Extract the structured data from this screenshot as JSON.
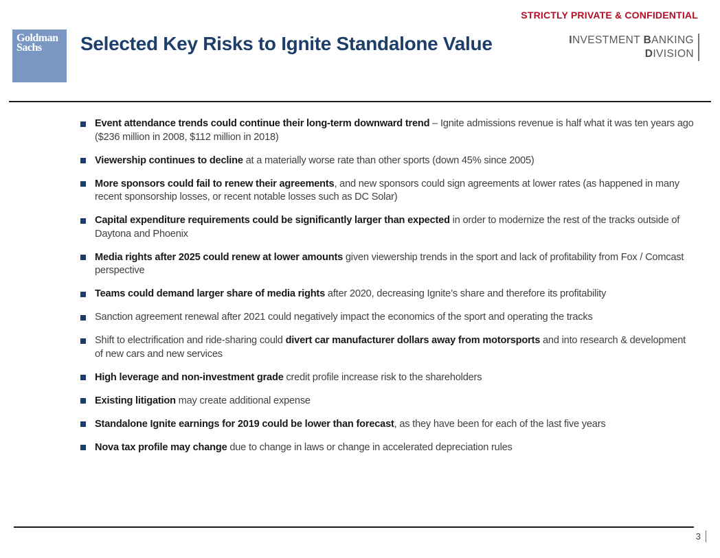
{
  "header": {
    "confidential": "STRICTLY PRIVATE & CONFIDENTIAL",
    "logo_line1": "Goldman",
    "logo_line2": "Sachs",
    "title": "Selected Key Risks to Ignite Standalone Value",
    "division": {
      "line1": [
        {
          "t": "I",
          "b": true
        },
        {
          "t": "NVESTMENT ",
          "b": false
        },
        {
          "t": "B",
          "b": true
        },
        {
          "t": "ANKING",
          "b": false
        }
      ],
      "line2": [
        {
          "t": "D",
          "b": true
        },
        {
          "t": "IVISION",
          "b": false
        }
      ]
    }
  },
  "bullets": [
    [
      {
        "t": "Event attendance trends could continue their long-term downward trend",
        "b": true
      },
      {
        "t": " – Ignite admissions revenue is half what it was ten years ago ($236 million in 2008, $112 million in 2018)",
        "b": false
      }
    ],
    [
      {
        "t": "Viewership continues to decline",
        "b": true
      },
      {
        "t": " at a materially worse rate than other sports (down 45% since 2005)",
        "b": false
      }
    ],
    [
      {
        "t": "More sponsors could fail to renew their agreements",
        "b": true
      },
      {
        "t": ", and new sponsors could sign agreements at lower rates (as happened in many recent sponsorship losses, or recent notable losses such as DC Solar)",
        "b": false
      }
    ],
    [
      {
        "t": "Capital expenditure requirements could be significantly larger than expected",
        "b": true
      },
      {
        "t": " in order to modernize the rest of the tracks outside of Daytona and Phoenix",
        "b": false
      }
    ],
    [
      {
        "t": "Media rights after 2025 could renew at lower amounts",
        "b": true
      },
      {
        "t": " given viewership trends in the sport and lack of profitability from Fox / Comcast perspective",
        "b": false
      }
    ],
    [
      {
        "t": "Teams could demand larger share of media rights",
        "b": true
      },
      {
        "t": " after 2020, decreasing Ignite’s share and therefore its profitability",
        "b": false
      }
    ],
    [
      {
        "t": "Sanction agreement renewal after 2021 could negatively impact the economics of the sport and operating the tracks",
        "b": false
      }
    ],
    [
      {
        "t": "Shift to electrification and ride-sharing could ",
        "b": false
      },
      {
        "t": "divert car manufacturer dollars away from motorsports",
        "b": true
      },
      {
        "t": " and into research & development of new cars and new services",
        "b": false
      }
    ],
    [
      {
        "t": "High leverage and non-investment grade",
        "b": true
      },
      {
        "t": " credit profile increase risk to the shareholders",
        "b": false
      }
    ],
    [
      {
        "t": "Existing litigation",
        "b": true
      },
      {
        "t": " may create additional expense",
        "b": false
      }
    ],
    [
      {
        "t": "Standalone Ignite earnings for 2019 could be lower than forecast",
        "b": true
      },
      {
        "t": ", as they have been for each of the last five years",
        "b": false
      }
    ],
    [
      {
        "t": "Nova tax profile may change",
        "b": true
      },
      {
        "t": " due to change in laws or change in accelerated depreciation rules",
        "b": false
      }
    ]
  ],
  "footer": {
    "page_number": "3"
  },
  "colors": {
    "accent_navy": "#1C3E69",
    "confidential_red": "#B20D23",
    "logo_blue": "#7A97C3",
    "division_gray": "#58595B",
    "body_text": "#3F3F3F",
    "bold_text": "#1A1A1A",
    "rule_black": "#1A1A1A"
  }
}
